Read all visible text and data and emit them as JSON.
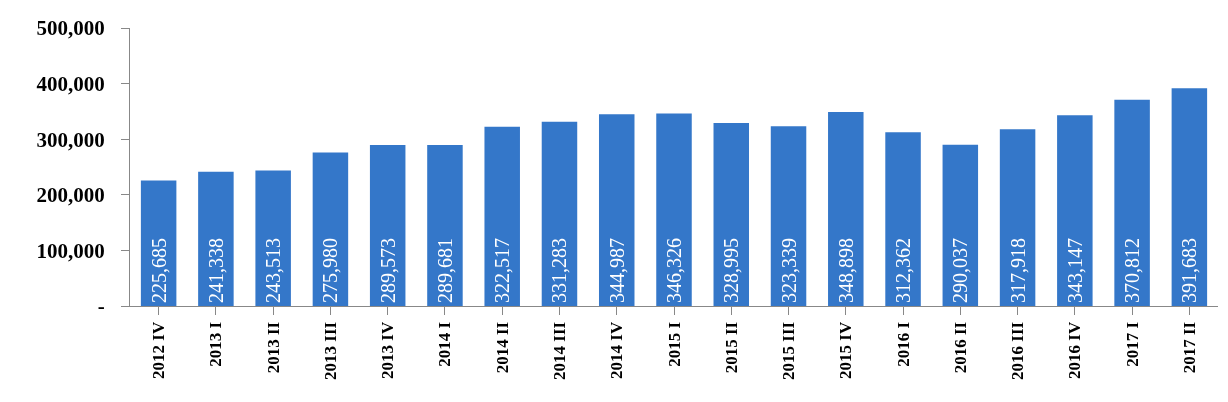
{
  "chart_data": {
    "type": "bar",
    "categories": [
      "2012 IV",
      "2013 I",
      "2013 II",
      "2013 III",
      "2013 IV",
      "2014 I",
      "2014 II",
      "2014 III",
      "2014 IV",
      "2015 I",
      "2015 II",
      "2015 III",
      "2015 IV",
      "2016 I",
      "2016 II",
      "2016 III",
      "2016 IV",
      "2017 I",
      "2017 II"
    ],
    "values": [
      225685,
      241338,
      243513,
      275980,
      289573,
      289681,
      322517,
      331283,
      344987,
      346326,
      328995,
      323339,
      348898,
      312362,
      290037,
      317918,
      343147,
      370812,
      391683
    ],
    "color": "#3477c9",
    "ylim": [
      0,
      500000
    ],
    "yticks": [
      {
        "value": 0,
        "label": "-"
      },
      {
        "value": 100000,
        "label": "100,000"
      },
      {
        "value": 200000,
        "label": "200,000"
      },
      {
        "value": 300000,
        "label": "300,000"
      },
      {
        "value": 400000,
        "label": "400,000"
      },
      {
        "value": 500000,
        "label": "500,000"
      }
    ],
    "value_labels": [
      "225,685",
      "241,338",
      "243,513",
      "275,980",
      "289,573",
      "289,681",
      "322,517",
      "331,283",
      "344,987",
      "346,326",
      "328,995",
      "323,339",
      "348,898",
      "312,362",
      "290,037",
      "317,918",
      "343,147",
      "370,812",
      "391,683"
    ]
  }
}
